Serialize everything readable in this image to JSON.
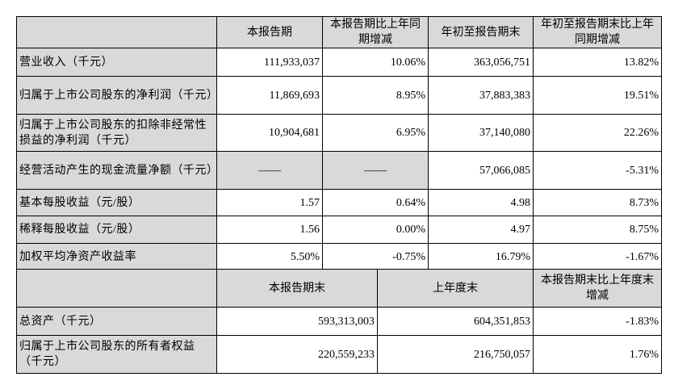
{
  "table1": {
    "headers": [
      "",
      "本报告期",
      "本报告期比上年同期增减",
      "年初至报告期末",
      "年初至报告期末比上年同期增减"
    ],
    "rows": [
      {
        "label": "营业收入（千元）",
        "values": [
          "111,933,037",
          "10.06%",
          "363,056,751",
          "13.82%"
        ]
      },
      {
        "label": "归属于上市公司股东的净利润（千元）",
        "values": [
          "11,869,693",
          "8.95%",
          "37,883,383",
          "19.51%"
        ]
      },
      {
        "label": "归属于上市公司股东的扣除非经常性损益的净利润（千元）",
        "values": [
          "10,904,681",
          "6.95%",
          "37,140,080",
          "22.26%"
        ]
      },
      {
        "label": "经营活动产生的现金流量净额（千元）",
        "values": [
          "——",
          "——",
          "57,066,085",
          "-5.31%"
        ]
      },
      {
        "label": "基本每股收益（元/股）",
        "values": [
          "1.57",
          "0.64%",
          "4.98",
          "8.73%"
        ]
      },
      {
        "label": "稀释每股收益（元/股）",
        "values": [
          "1.56",
          "0.00%",
          "4.97",
          "8.75%"
        ]
      },
      {
        "label": "加权平均净资产收益率",
        "values": [
          "5.50%",
          "-0.75%",
          "16.79%",
          "-1.67%"
        ]
      }
    ]
  },
  "table2": {
    "headers": [
      "",
      "本报告期末",
      "上年度末",
      "本报告期末比上年度末增减"
    ],
    "rows": [
      {
        "label": "总资产（千元）",
        "values": [
          "593,313,003",
          "604,351,853",
          "-1.83%"
        ]
      },
      {
        "label": "归属于上市公司股东的所有者权益（千元）",
        "values": [
          "220,559,233",
          "216,750,057",
          "1.76%"
        ]
      }
    ]
  }
}
